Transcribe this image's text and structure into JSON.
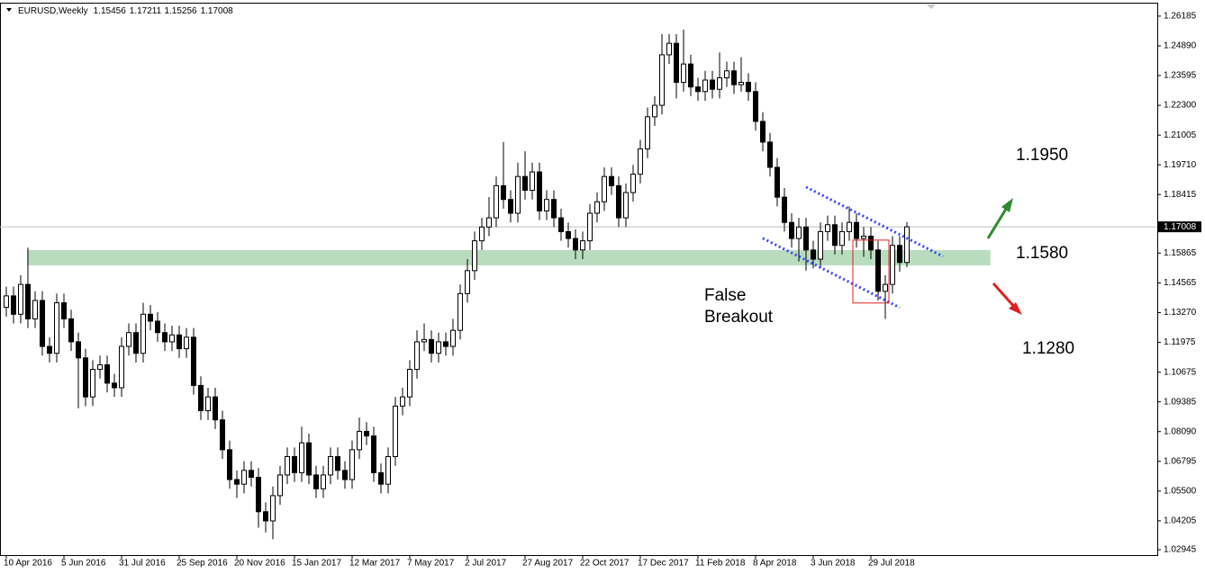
{
  "chart_data": {
    "type": "candlestick",
    "title": "EURUSD,Weekly",
    "header_values": [
      1.15456,
      1.17211,
      1.15256,
      1.17008
    ],
    "categories": [
      "10 Apr 2016",
      null,
      null,
      null,
      null,
      null,
      null,
      null,
      "5 Jun 2016",
      null,
      null,
      null,
      null,
      null,
      null,
      null,
      "31 Jul 2016",
      null,
      null,
      null,
      null,
      null,
      null,
      null,
      "25 Sep 2016",
      null,
      null,
      null,
      null,
      null,
      null,
      null,
      "20 Nov 2016",
      null,
      null,
      null,
      null,
      null,
      null,
      null,
      "15 Jan 2017",
      null,
      null,
      null,
      null,
      null,
      null,
      null,
      "12 Mar 2017",
      null,
      null,
      null,
      null,
      null,
      null,
      null,
      "7 May 2017",
      null,
      null,
      null,
      null,
      null,
      null,
      null,
      "2 Jul 2017",
      null,
      null,
      null,
      null,
      null,
      null,
      null,
      "27 Aug 2017",
      null,
      null,
      null,
      null,
      null,
      null,
      null,
      "22 Oct 2017",
      null,
      null,
      null,
      null,
      null,
      null,
      null,
      "17 Dec 2017",
      null,
      null,
      null,
      null,
      null,
      null,
      null,
      "11 Feb 2018",
      null,
      null,
      null,
      null,
      null,
      null,
      null,
      "8 Apr 2018",
      null,
      null,
      null,
      null,
      null,
      null,
      null,
      "3 Jun 2018",
      null,
      null,
      null,
      null,
      null,
      null,
      null,
      "29 Jul 2018",
      null,
      null,
      null,
      null,
      null
    ],
    "open": [
      1.135,
      1.14,
      1.132,
      1.145,
      1.13,
      1.138,
      1.118,
      1.115,
      1.137,
      1.13,
      1.12,
      1.113,
      1.096,
      1.108,
      1.11,
      1.102,
      1.1,
      1.118,
      1.124,
      1.115,
      1.132,
      1.129,
      1.124,
      1.12,
      1.123,
      1.117,
      1.122,
      1.101,
      1.09,
      1.096,
      1.086,
      1.073,
      1.06,
      1.058,
      1.064,
      1.061,
      1.046,
      1.042,
      1.053,
      1.062,
      1.07,
      1.063,
      1.076,
      1.062,
      1.056,
      1.062,
      1.07,
      1.064,
      1.06,
      1.073,
      1.081,
      1.079,
      1.063,
      1.058,
      1.07,
      1.092,
      1.096,
      1.108,
      1.12,
      1.121,
      1.115,
      1.12,
      1.118,
      1.125,
      1.141,
      1.151,
      1.164,
      1.17,
      1.174,
      1.188,
      1.182,
      1.176,
      1.192,
      1.186,
      1.194,
      1.177,
      1.182,
      1.174,
      1.168,
      1.165,
      1.16,
      1.164,
      1.176,
      1.181,
      1.192,
      1.188,
      1.174,
      1.185,
      1.193,
      1.204,
      1.218,
      1.223,
      1.245,
      1.25,
      1.233,
      1.241,
      1.231,
      1.229,
      1.234,
      1.23,
      1.235,
      1.238,
      1.232,
      1.233,
      1.229,
      1.216,
      1.207,
      1.196,
      1.183,
      1.172,
      1.165,
      1.17,
      1.16,
      1.156,
      1.168,
      1.171,
      1.162,
      1.168,
      1.172,
      1.165,
      1.166,
      1.16,
      1.142,
      1.145,
      1.162,
      1.15456
    ],
    "high": [
      1.144,
      1.144,
      1.149,
      1.161,
      1.142,
      1.142,
      1.122,
      1.141,
      1.141,
      1.134,
      1.124,
      1.117,
      1.112,
      1.114,
      1.114,
      1.106,
      1.122,
      1.128,
      1.128,
      1.137,
      1.136,
      1.133,
      1.128,
      1.127,
      1.127,
      1.126,
      1.126,
      1.105,
      1.1,
      1.1,
      1.09,
      1.077,
      1.064,
      1.068,
      1.068,
      1.065,
      1.05,
      1.057,
      1.066,
      1.074,
      1.074,
      1.083,
      1.08,
      1.066,
      1.066,
      1.074,
      1.074,
      1.068,
      1.077,
      1.087,
      1.085,
      1.083,
      1.067,
      1.074,
      1.096,
      1.1,
      1.112,
      1.125,
      1.128,
      1.125,
      1.124,
      1.124,
      1.13,
      1.145,
      1.156,
      1.168,
      1.174,
      1.183,
      1.192,
      1.207,
      1.186,
      1.198,
      1.203,
      1.198,
      1.198,
      1.186,
      1.186,
      1.178,
      1.172,
      1.169,
      1.168,
      1.18,
      1.185,
      1.196,
      1.196,
      1.192,
      1.189,
      1.197,
      1.208,
      1.222,
      1.227,
      1.254,
      1.254,
      1.254,
      1.256,
      1.245,
      1.235,
      1.238,
      1.238,
      1.246,
      1.242,
      1.242,
      1.244,
      1.237,
      1.233,
      1.22,
      1.211,
      1.2,
      1.187,
      1.176,
      1.174,
      1.174,
      1.164,
      1.172,
      1.175,
      1.175,
      1.172,
      1.179,
      1.176,
      1.17,
      1.17,
      1.164,
      1.149,
      1.166,
      1.166,
      1.17211
    ],
    "low": [
      1.131,
      1.128,
      1.128,
      1.126,
      1.126,
      1.114,
      1.111,
      1.111,
      1.126,
      1.116,
      1.091,
      1.092,
      1.092,
      1.104,
      1.098,
      1.096,
      1.096,
      1.114,
      1.111,
      1.111,
      1.125,
      1.12,
      1.116,
      1.116,
      1.113,
      1.113,
      1.097,
      1.086,
      1.086,
      1.082,
      1.069,
      1.056,
      1.052,
      1.054,
      1.057,
      1.039,
      1.037,
      1.034,
      1.049,
      1.058,
      1.059,
      1.059,
      1.058,
      1.052,
      1.052,
      1.058,
      1.06,
      1.056,
      1.056,
      1.069,
      1.075,
      1.059,
      1.054,
      1.054,
      1.066,
      1.088,
      1.092,
      1.104,
      1.116,
      1.111,
      1.111,
      1.114,
      1.114,
      1.121,
      1.137,
      1.147,
      1.16,
      1.166,
      1.17,
      1.178,
      1.172,
      1.172,
      1.182,
      1.182,
      1.173,
      1.173,
      1.17,
      1.164,
      1.161,
      1.156,
      1.156,
      1.16,
      1.172,
      1.177,
      1.184,
      1.17,
      1.17,
      1.181,
      1.189,
      1.2,
      1.214,
      1.219,
      1.241,
      1.226,
      1.229,
      1.227,
      1.225,
      1.225,
      1.226,
      1.226,
      1.231,
      1.228,
      1.229,
      1.225,
      1.212,
      1.203,
      1.192,
      1.179,
      1.168,
      1.161,
      1.155,
      1.151,
      1.152,
      1.152,
      1.164,
      1.158,
      1.158,
      1.164,
      1.161,
      1.157,
      1.156,
      1.138,
      1.13,
      1.141,
      1.1506,
      1.15256
    ],
    "close": [
      1.14,
      1.132,
      1.145,
      1.13,
      1.138,
      1.118,
      1.115,
      1.137,
      1.13,
      1.12,
      1.113,
      1.096,
      1.108,
      1.11,
      1.102,
      1.1,
      1.118,
      1.124,
      1.115,
      1.132,
      1.129,
      1.124,
      1.12,
      1.123,
      1.117,
      1.122,
      1.101,
      1.09,
      1.096,
      1.086,
      1.073,
      1.06,
      1.058,
      1.064,
      1.061,
      1.046,
      1.042,
      1.053,
      1.062,
      1.07,
      1.063,
      1.076,
      1.062,
      1.056,
      1.062,
      1.07,
      1.064,
      1.06,
      1.073,
      1.081,
      1.079,
      1.063,
      1.058,
      1.07,
      1.092,
      1.096,
      1.108,
      1.12,
      1.121,
      1.115,
      1.12,
      1.118,
      1.125,
      1.141,
      1.151,
      1.164,
      1.17,
      1.174,
      1.188,
      1.182,
      1.176,
      1.192,
      1.186,
      1.194,
      1.177,
      1.182,
      1.174,
      1.168,
      1.165,
      1.16,
      1.164,
      1.176,
      1.181,
      1.192,
      1.188,
      1.174,
      1.185,
      1.193,
      1.204,
      1.218,
      1.223,
      1.245,
      1.25,
      1.233,
      1.241,
      1.231,
      1.229,
      1.234,
      1.23,
      1.235,
      1.238,
      1.232,
      1.233,
      1.229,
      1.216,
      1.207,
      1.196,
      1.183,
      1.172,
      1.165,
      1.17,
      1.16,
      1.156,
      1.168,
      1.171,
      1.162,
      1.168,
      1.172,
      1.165,
      1.166,
      1.16,
      1.142,
      1.145,
      1.162,
      1.15456,
      1.17008
    ],
    "ylim": [
      1.0271,
      1.2677
    ],
    "yticks": [
      1.26185,
      {
        "value": 1.2489,
        "label": "1.24890"
      },
      1.23595,
      {
        "value": 1.223,
        "label": "1.22300"
      },
      1.21005,
      {
        "value": 1.1971,
        "label": "1.19710"
      },
      1.18415,
      1.15865,
      1.14565,
      {
        "value": 1.1327,
        "label": "1.13270"
      },
      1.11975,
      1.10675,
      1.09385,
      {
        "value": 1.0809,
        "label": "1.08090"
      },
      1.06795,
      {
        "value": 1.055,
        "label": "1.05500"
      },
      1.04205,
      1.02945
    ],
    "current_price": 1.17008,
    "zone": {
      "x": [
        2.9,
        136.6
      ],
      "y": [
        1.1533,
        1.16
      ],
      "color": "#b9dcbe"
    },
    "channel": [
      {
        "x": [
          111,
          130
        ],
        "y": [
          1.1874,
          1.1572
        ]
      },
      {
        "x": [
          105,
          124
        ],
        "y": [
          1.1651,
          1.1349
        ]
      }
    ],
    "breakout_box": {
      "x": [
        117.5,
        122.5
      ],
      "y": [
        1.1643,
        1.1369
      ]
    },
    "annotation": [
      "False",
      "Breakout"
    ],
    "levels": [
      {
        "value": 1.195,
        "label": "1.1950"
      },
      {
        "value": 1.158,
        "label": "1.1580"
      },
      {
        "value": 1.128,
        "label": "1.1280"
      }
    ]
  }
}
